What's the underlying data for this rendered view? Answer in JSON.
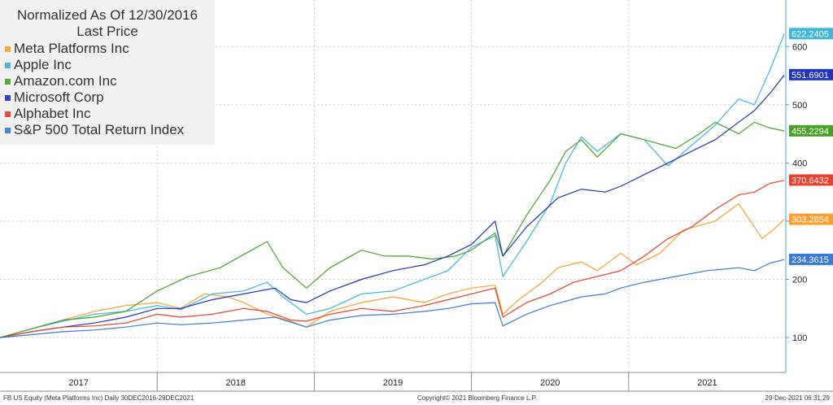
{
  "legend": {
    "title_line1": "Normalized As Of 12/30/2016",
    "title_line2": "Last Price"
  },
  "footer": {
    "left": "FB US Equity (Meta Platforms Inc)  Daily 30DEC2016-29DEC2021",
    "center": "Copyright© 2021 Bloomberg Finance L.P.",
    "right": "29-Dec-2021 06:31:29"
  },
  "chart_data": {
    "type": "line",
    "title": "Normalized As Of 12/30/2016",
    "subtitle": "Last Price",
    "xlim": [
      2017.0,
      2022.0
    ],
    "ylim": [
      40,
      680
    ],
    "x_ticks": [
      {
        "label": "2017",
        "pos": 2017.5
      },
      {
        "label": "2018",
        "pos": 2018.5
      },
      {
        "label": "2019",
        "pos": 2019.5
      },
      {
        "label": "2020",
        "pos": 2020.5
      },
      {
        "label": "2021",
        "pos": 2021.5
      }
    ],
    "x_boundaries": [
      2018,
      2019,
      2020,
      2021
    ],
    "y_ticks": [
      100,
      200,
      300,
      400,
      500,
      600
    ],
    "grid": true,
    "legend_position": "top-left",
    "series": [
      {
        "name": "Meta Platforms Inc",
        "color": "#f7a030",
        "last_value": "303.2854",
        "points": [
          [
            2017.0,
            100
          ],
          [
            2017.2,
            115
          ],
          [
            2017.4,
            130
          ],
          [
            2017.6,
            145
          ],
          [
            2017.8,
            155
          ],
          [
            2018.0,
            160
          ],
          [
            2018.15,
            150
          ],
          [
            2018.3,
            175
          ],
          [
            2018.45,
            170
          ],
          [
            2018.55,
            160
          ],
          [
            2018.7,
            140
          ],
          [
            2018.85,
            128
          ],
          [
            2018.95,
            118
          ],
          [
            2019.1,
            145
          ],
          [
            2019.3,
            160
          ],
          [
            2019.5,
            170
          ],
          [
            2019.7,
            160
          ],
          [
            2019.85,
            175
          ],
          [
            2020.0,
            185
          ],
          [
            2020.15,
            190
          ],
          [
            2020.2,
            140
          ],
          [
            2020.3,
            165
          ],
          [
            2020.45,
            195
          ],
          [
            2020.55,
            220
          ],
          [
            2020.7,
            230
          ],
          [
            2020.8,
            215
          ],
          [
            2020.95,
            245
          ],
          [
            2021.05,
            225
          ],
          [
            2021.2,
            245
          ],
          [
            2021.35,
            285
          ],
          [
            2021.55,
            300
          ],
          [
            2021.7,
            330
          ],
          [
            2021.75,
            310
          ],
          [
            2021.85,
            270
          ],
          [
            2021.92,
            285
          ],
          [
            2021.99,
            303
          ]
        ]
      },
      {
        "name": "Apple Inc",
        "color": "#3fb5d6",
        "last_value": "622.2405",
        "points": [
          [
            2017.0,
            100
          ],
          [
            2017.2,
            115
          ],
          [
            2017.4,
            128
          ],
          [
            2017.6,
            140
          ],
          [
            2017.8,
            145
          ],
          [
            2018.0,
            155
          ],
          [
            2018.15,
            148
          ],
          [
            2018.35,
            175
          ],
          [
            2018.55,
            180
          ],
          [
            2018.7,
            195
          ],
          [
            2018.8,
            170
          ],
          [
            2018.95,
            140
          ],
          [
            2019.1,
            150
          ],
          [
            2019.3,
            175
          ],
          [
            2019.5,
            180
          ],
          [
            2019.65,
            195
          ],
          [
            2019.85,
            215
          ],
          [
            2020.0,
            255
          ],
          [
            2020.15,
            275
          ],
          [
            2020.2,
            205
          ],
          [
            2020.35,
            265
          ],
          [
            2020.5,
            330
          ],
          [
            2020.6,
            400
          ],
          [
            2020.7,
            445
          ],
          [
            2020.8,
            420
          ],
          [
            2020.95,
            450
          ],
          [
            2021.1,
            440
          ],
          [
            2021.25,
            395
          ],
          [
            2021.4,
            430
          ],
          [
            2021.55,
            465
          ],
          [
            2021.7,
            510
          ],
          [
            2021.8,
            500
          ],
          [
            2021.9,
            560
          ],
          [
            2021.99,
            622
          ]
        ]
      },
      {
        "name": "Amazon.com Inc",
        "color": "#4aa12a",
        "last_value": "455.2294",
        "points": [
          [
            2017.0,
            100
          ],
          [
            2017.2,
            115
          ],
          [
            2017.4,
            130
          ],
          [
            2017.6,
            135
          ],
          [
            2017.8,
            145
          ],
          [
            2018.0,
            180
          ],
          [
            2018.2,
            205
          ],
          [
            2018.4,
            220
          ],
          [
            2018.6,
            250
          ],
          [
            2018.7,
            265
          ],
          [
            2018.8,
            220
          ],
          [
            2018.95,
            185
          ],
          [
            2019.1,
            220
          ],
          [
            2019.3,
            250
          ],
          [
            2019.45,
            240
          ],
          [
            2019.6,
            240
          ],
          [
            2019.75,
            235
          ],
          [
            2019.9,
            240
          ],
          [
            2020.0,
            250
          ],
          [
            2020.15,
            280
          ],
          [
            2020.2,
            240
          ],
          [
            2020.35,
            310
          ],
          [
            2020.5,
            370
          ],
          [
            2020.6,
            420
          ],
          [
            2020.7,
            440
          ],
          [
            2020.8,
            410
          ],
          [
            2020.95,
            450
          ],
          [
            2021.1,
            440
          ],
          [
            2021.3,
            425
          ],
          [
            2021.45,
            450
          ],
          [
            2021.55,
            470
          ],
          [
            2021.7,
            450
          ],
          [
            2021.8,
            470
          ],
          [
            2021.9,
            460
          ],
          [
            2021.99,
            455
          ]
        ]
      },
      {
        "name": "Microsoft Corp",
        "color": "#2233bb",
        "last_value": "551.6901",
        "points": [
          [
            2017.0,
            100
          ],
          [
            2017.2,
            110
          ],
          [
            2017.4,
            118
          ],
          [
            2017.6,
            125
          ],
          [
            2017.8,
            135
          ],
          [
            2018.0,
            150
          ],
          [
            2018.15,
            150
          ],
          [
            2018.35,
            165
          ],
          [
            2018.55,
            175
          ],
          [
            2018.75,
            185
          ],
          [
            2018.85,
            165
          ],
          [
            2018.95,
            160
          ],
          [
            2019.1,
            180
          ],
          [
            2019.3,
            200
          ],
          [
            2019.5,
            215
          ],
          [
            2019.7,
            225
          ],
          [
            2019.85,
            240
          ],
          [
            2020.0,
            260
          ],
          [
            2020.15,
            300
          ],
          [
            2020.2,
            240
          ],
          [
            2020.35,
            290
          ],
          [
            2020.55,
            340
          ],
          [
            2020.7,
            355
          ],
          [
            2020.85,
            350
          ],
          [
            2020.95,
            360
          ],
          [
            2021.1,
            380
          ],
          [
            2021.25,
            400
          ],
          [
            2021.4,
            420
          ],
          [
            2021.55,
            440
          ],
          [
            2021.7,
            470
          ],
          [
            2021.8,
            490
          ],
          [
            2021.9,
            520
          ],
          [
            2021.99,
            551
          ]
        ]
      },
      {
        "name": "Alphabet Inc",
        "color": "#e8402a",
        "last_value": "370.6432",
        "points": [
          [
            2017.0,
            100
          ],
          [
            2017.2,
            110
          ],
          [
            2017.4,
            118
          ],
          [
            2017.6,
            120
          ],
          [
            2017.8,
            125
          ],
          [
            2018.0,
            140
          ],
          [
            2018.15,
            135
          ],
          [
            2018.35,
            140
          ],
          [
            2018.55,
            150
          ],
          [
            2018.7,
            145
          ],
          [
            2018.85,
            130
          ],
          [
            2018.95,
            128
          ],
          [
            2019.1,
            140
          ],
          [
            2019.3,
            150
          ],
          [
            2019.5,
            145
          ],
          [
            2019.7,
            155
          ],
          [
            2019.85,
            165
          ],
          [
            2020.0,
            175
          ],
          [
            2020.15,
            185
          ],
          [
            2020.2,
            135
          ],
          [
            2020.35,
            160
          ],
          [
            2020.5,
            175
          ],
          [
            2020.65,
            195
          ],
          [
            2020.8,
            205
          ],
          [
            2020.95,
            215
          ],
          [
            2021.1,
            240
          ],
          [
            2021.25,
            270
          ],
          [
            2021.4,
            290
          ],
          [
            2021.55,
            320
          ],
          [
            2021.7,
            345
          ],
          [
            2021.8,
            350
          ],
          [
            2021.9,
            365
          ],
          [
            2021.99,
            370
          ]
        ]
      },
      {
        "name": "S&P 500 Total Return Index",
        "color": "#3a7ad4",
        "last_value": "234.3615",
        "points": [
          [
            2017.0,
            100
          ],
          [
            2017.2,
            105
          ],
          [
            2017.4,
            110
          ],
          [
            2017.6,
            113
          ],
          [
            2017.8,
            118
          ],
          [
            2018.0,
            125
          ],
          [
            2018.15,
            122
          ],
          [
            2018.35,
            125
          ],
          [
            2018.55,
            130
          ],
          [
            2018.75,
            135
          ],
          [
            2018.95,
            118
          ],
          [
            2019.1,
            130
          ],
          [
            2019.3,
            138
          ],
          [
            2019.5,
            140
          ],
          [
            2019.7,
            145
          ],
          [
            2019.85,
            150
          ],
          [
            2020.0,
            158
          ],
          [
            2020.15,
            160
          ],
          [
            2020.2,
            120
          ],
          [
            2020.35,
            140
          ],
          [
            2020.5,
            155
          ],
          [
            2020.7,
            170
          ],
          [
            2020.85,
            175
          ],
          [
            2020.95,
            185
          ],
          [
            2021.1,
            195
          ],
          [
            2021.3,
            205
          ],
          [
            2021.5,
            215
          ],
          [
            2021.7,
            220
          ],
          [
            2021.8,
            215
          ],
          [
            2021.9,
            228
          ],
          [
            2021.99,
            234
          ]
        ]
      }
    ]
  }
}
